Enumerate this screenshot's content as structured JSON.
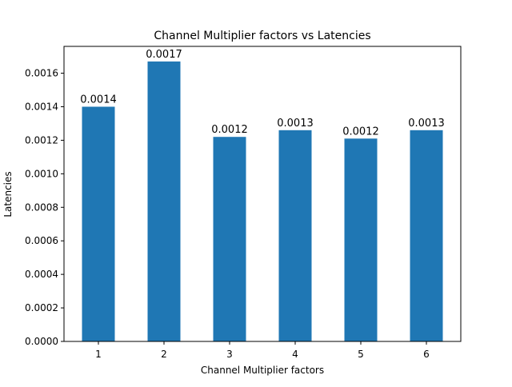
{
  "chart_data": {
    "type": "bar",
    "title": "Channel Multiplier factors vs Latencies",
    "xlabel": "Channel Multiplier factors",
    "ylabel": "Latencies",
    "categories": [
      "1",
      "2",
      "3",
      "4",
      "5",
      "6"
    ],
    "values": [
      0.0014,
      0.00167,
      0.00122,
      0.00126,
      0.00121,
      0.00126
    ],
    "data_labels": [
      "0.0014",
      "0.0017",
      "0.0012",
      "0.0013",
      "0.0012",
      "0.0013"
    ],
    "ylim": [
      0,
      0.00176
    ],
    "yticks": [
      0,
      0.0002,
      0.0004,
      0.0006,
      0.0008,
      0.001,
      0.0012,
      0.0014,
      0.0016
    ],
    "ytick_labels": [
      "0.0000",
      "0.0002",
      "0.0004",
      "0.0006",
      "0.0008",
      "0.0010",
      "0.0012",
      "0.0014",
      "0.0016"
    ],
    "grid": false,
    "legend": "none",
    "bar_color": "#1f77b4"
  }
}
